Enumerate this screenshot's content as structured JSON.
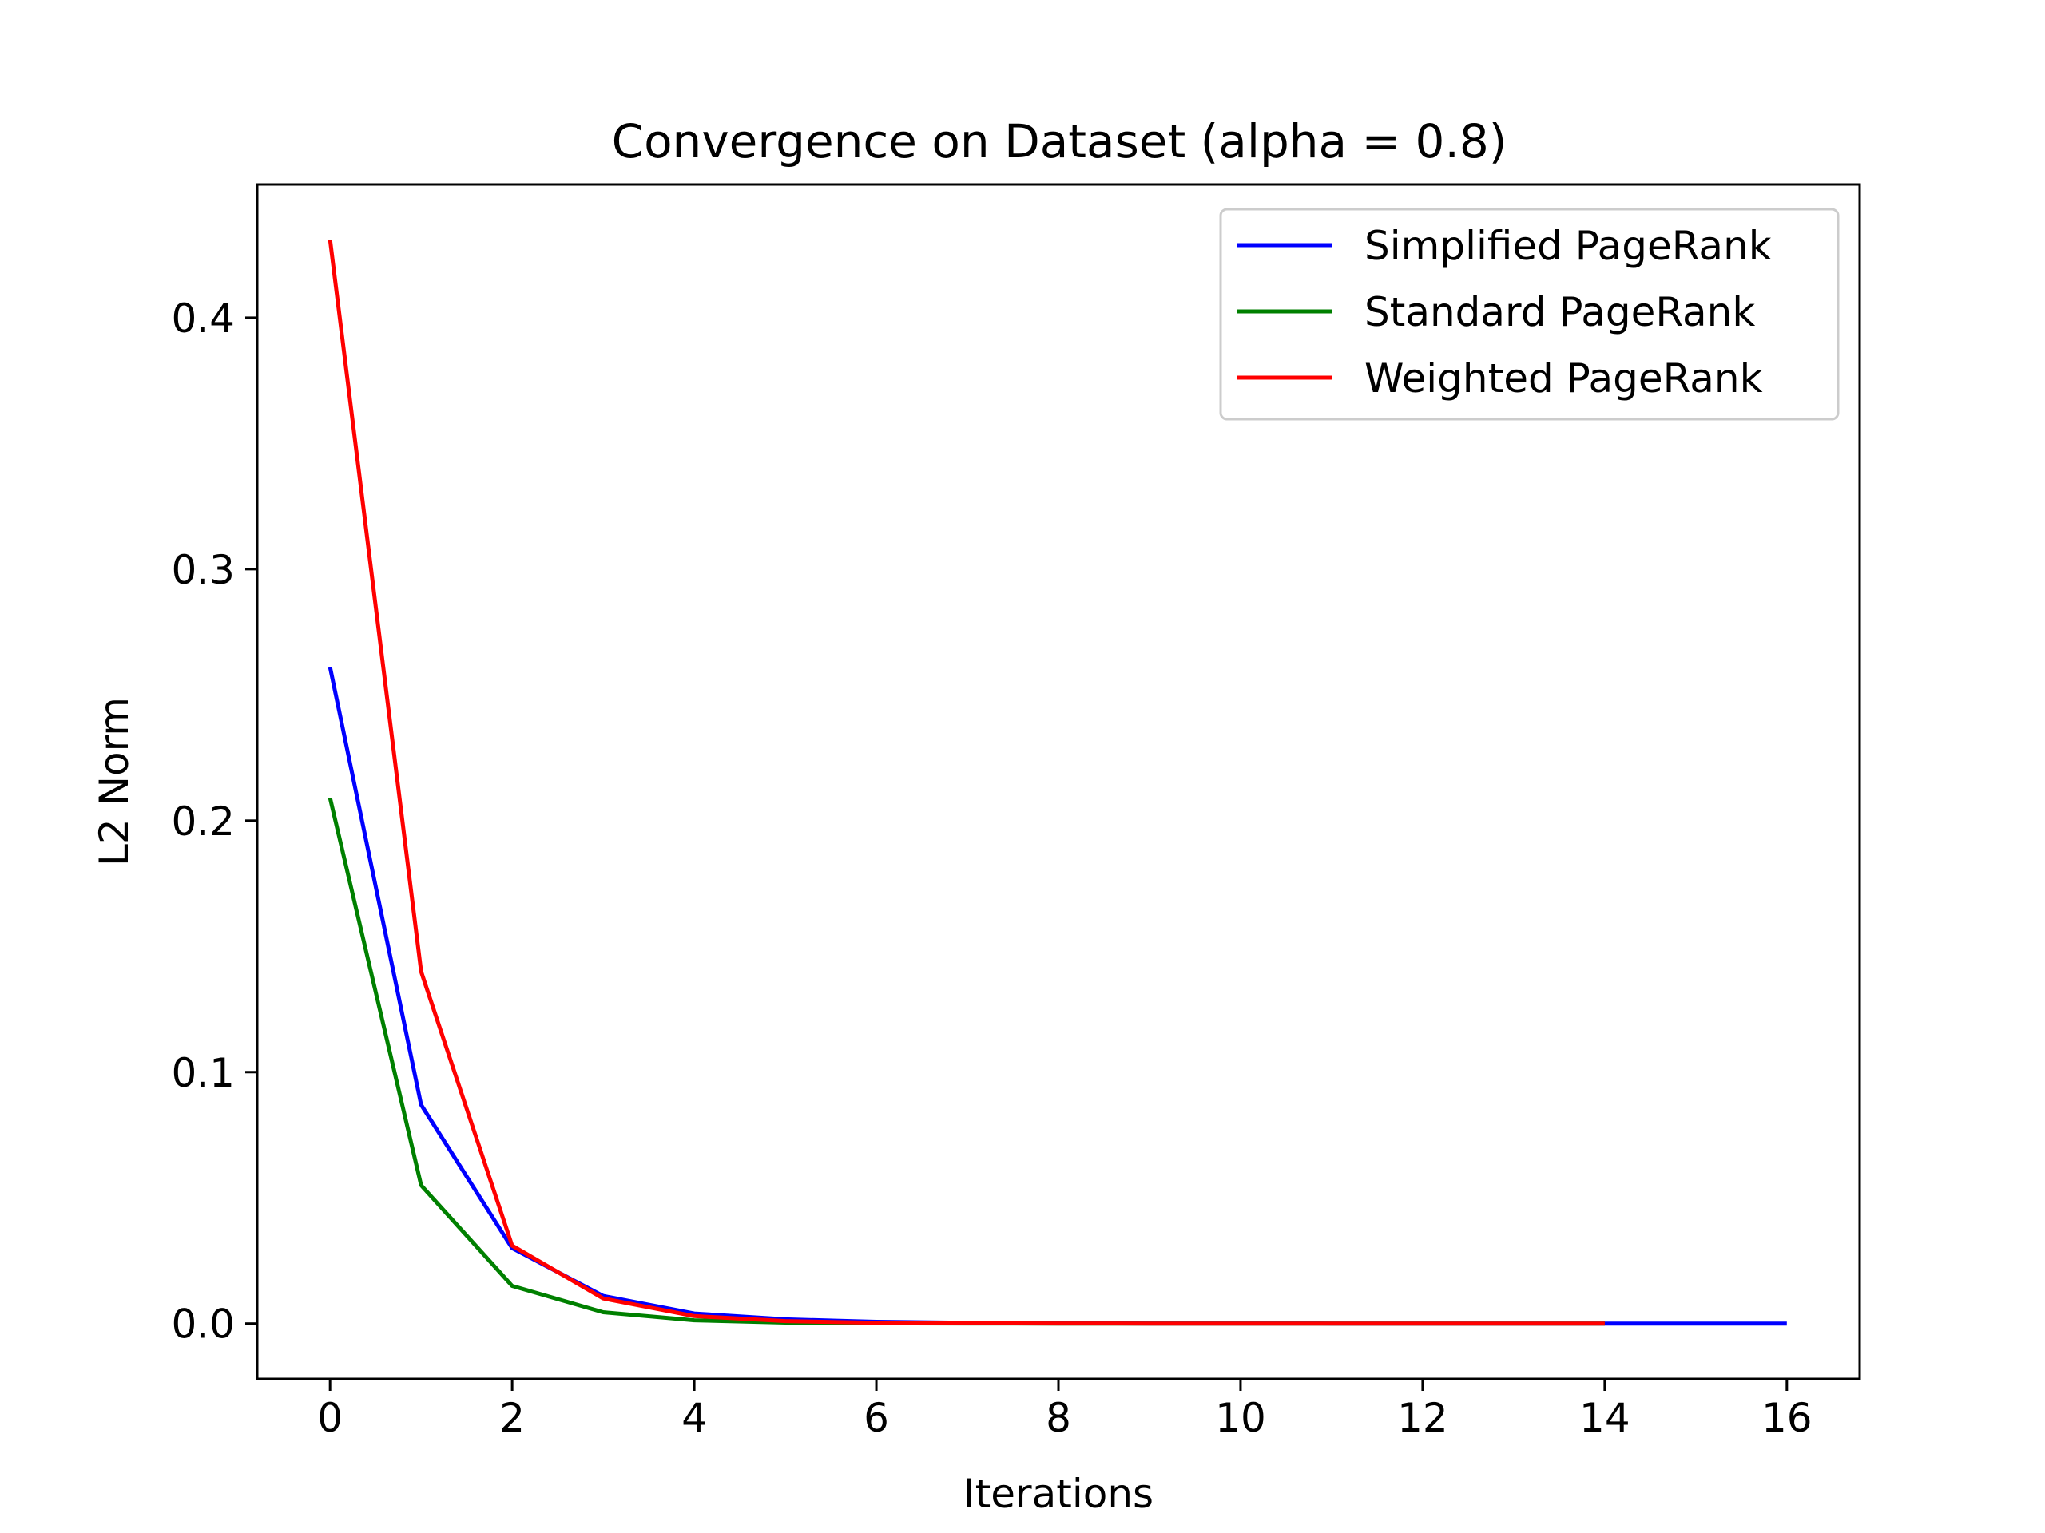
{
  "chart_data": {
    "type": "line",
    "title": "Convergence on Dataset (alpha = 0.8)",
    "xlabel": "Iterations",
    "ylabel": "L2 Norm",
    "xlim": [
      -0.8,
      16.8
    ],
    "ylim": [
      -0.022,
      0.453
    ],
    "xticks": [
      0,
      2,
      4,
      6,
      8,
      10,
      12,
      14,
      16
    ],
    "xtick_labels": [
      "0",
      "2",
      "4",
      "6",
      "8",
      "10",
      "12",
      "14",
      "16"
    ],
    "yticks": [
      0.0,
      0.1,
      0.2,
      0.3,
      0.4
    ],
    "ytick_labels": [
      "0.0",
      "0.1",
      "0.2",
      "0.3",
      "0.4"
    ],
    "grid": false,
    "legend_position": "top-right",
    "series": [
      {
        "name": "Simplified PageRank",
        "color": "#0000ff",
        "x": [
          0,
          1,
          2,
          3,
          4,
          5,
          6,
          7,
          8,
          9,
          10,
          11,
          12,
          13,
          14,
          15,
          16
        ],
        "values": [
          0.261,
          0.087,
          0.03,
          0.011,
          0.004,
          0.0017,
          0.0007,
          0.0003,
          0.0001,
          5e-05,
          2e-05,
          1e-05,
          0.0,
          0.0,
          0.0,
          0.0,
          0.0
        ]
      },
      {
        "name": "Standard PageRank",
        "color": "#008000",
        "x": [
          0,
          1,
          2,
          3,
          4,
          5,
          6,
          7,
          8,
          9,
          10,
          11,
          12,
          13,
          14
        ],
        "values": [
          0.209,
          0.055,
          0.015,
          0.0045,
          0.0013,
          0.0004,
          0.0001,
          3e-05,
          1e-05,
          0.0,
          0.0,
          0.0,
          0.0,
          0.0,
          0.0
        ]
      },
      {
        "name": "Weighted PageRank",
        "color": "#ff0000",
        "x": [
          0,
          1,
          2,
          3,
          4,
          5,
          6,
          7,
          8,
          9,
          10,
          11,
          12,
          13,
          14
        ],
        "values": [
          0.431,
          0.14,
          0.031,
          0.01,
          0.003,
          0.001,
          0.0003,
          0.0001,
          3e-05,
          1e-05,
          0.0,
          0.0,
          0.0,
          0.0,
          0.0
        ]
      }
    ]
  }
}
